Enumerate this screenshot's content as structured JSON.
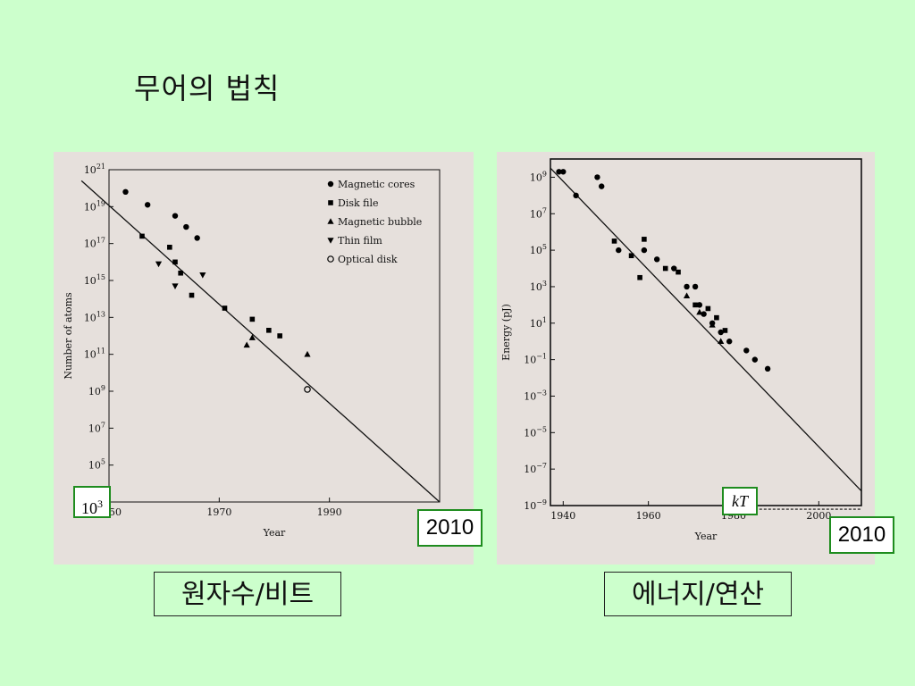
{
  "slide": {
    "title": "무어의 법칙",
    "captions": [
      "원자수/비트",
      "에너지/연산"
    ],
    "highlights": {
      "year_left": "2010",
      "year_right": "2010",
      "atoms_base": "10",
      "atoms_exp": "3",
      "kt_label": "kT"
    }
  },
  "colors": {
    "background": "#ccffcc",
    "panel": "#e6e0dc",
    "highlight_border": "#1e8c1e"
  },
  "chart_data": [
    {
      "type": "scatter",
      "title": "",
      "xlabel": "Year",
      "ylabel": "Number of atoms",
      "xlim": [
        1950,
        2010
      ],
      "ylim_log10": [
        3,
        21
      ],
      "xticks": [
        1950,
        1970,
        1990
      ],
      "yticks_exp": [
        5,
        7,
        9,
        11,
        13,
        15,
        17,
        19,
        21
      ],
      "legend": {
        "placement": "top-right",
        "entries": [
          "Magnetic cores",
          "Disk file",
          "Magnetic bubble",
          "Thin film",
          "Optical disk"
        ]
      },
      "series": [
        {
          "name": "Magnetic cores",
          "marker": "circle",
          "x": [
            1953,
            1957,
            1962,
            1964,
            1966
          ],
          "y_log10": [
            19.8,
            19.1,
            18.5,
            17.9,
            17.3
          ]
        },
        {
          "name": "Disk file",
          "marker": "square",
          "x": [
            1956,
            1961,
            1962,
            1963,
            1965,
            1971,
            1976,
            1979,
            1981
          ],
          "y_log10": [
            17.4,
            16.8,
            16.0,
            15.4,
            14.2,
            13.5,
            12.9,
            12.3,
            12.0
          ]
        },
        {
          "name": "Magnetic bubble",
          "marker": "triangle-up",
          "x": [
            1975,
            1976,
            1986
          ],
          "y_log10": [
            11.5,
            11.9,
            11.0
          ]
        },
        {
          "name": "Thin film",
          "marker": "triangle-down",
          "x": [
            1959,
            1962,
            1967
          ],
          "y_log10": [
            15.9,
            14.7,
            15.3
          ]
        },
        {
          "name": "Optical disk",
          "marker": "open-circle",
          "x": [
            1986
          ],
          "y_log10": [
            9.1
          ]
        }
      ],
      "trendline": {
        "x": [
          1945,
          2010
        ],
        "y_log10": [
          20.4,
          3.0
        ]
      }
    },
    {
      "type": "scatter",
      "title": "",
      "xlabel": "Year",
      "ylabel": "Energy (pJ)",
      "xlim": [
        1937,
        2010
      ],
      "ylim_log10": [
        -9,
        10
      ],
      "xticks": [
        1940,
        1960,
        1980,
        2000
      ],
      "yticks_exp": [
        -9,
        -7,
        -5,
        -3,
        -1,
        1,
        3,
        5,
        7,
        9
      ],
      "series": [
        {
          "name": "",
          "marker": "circle",
          "x": [
            1939,
            1940,
            1943,
            1948,
            1949,
            1953,
            1959,
            1962,
            1966,
            1969,
            1971,
            1972,
            1973,
            1975,
            1977,
            1979,
            1983,
            1985,
            1988
          ],
          "y_log10": [
            9.3,
            9.3,
            8.0,
            9.0,
            8.5,
            5.0,
            5.0,
            4.5,
            4.0,
            3.0,
            3.0,
            2.0,
            1.5,
            1.0,
            0.5,
            0.0,
            -0.5,
            -1.0,
            -1.5
          ]
        },
        {
          "name": "",
          "marker": "square",
          "x": [
            1952,
            1956,
            1958,
            1959,
            1964,
            1967,
            1971,
            1974,
            1976,
            1978
          ],
          "y_log10": [
            5.5,
            4.7,
            3.5,
            5.6,
            4.0,
            3.8,
            2.0,
            1.8,
            1.3,
            0.6
          ]
        },
        {
          "name": "",
          "marker": "triangle-up",
          "x": [
            1969,
            1972,
            1975,
            1977
          ],
          "y_log10": [
            2.5,
            1.6,
            0.9,
            0.0
          ]
        }
      ],
      "trendline": {
        "x": [
          1937,
          2010
        ],
        "y_log10": [
          9.5,
          -8.2
        ]
      },
      "reference_line": {
        "label": "kT",
        "y_log10": -9.2,
        "x_start": 1985,
        "style": "dashed"
      }
    }
  ]
}
